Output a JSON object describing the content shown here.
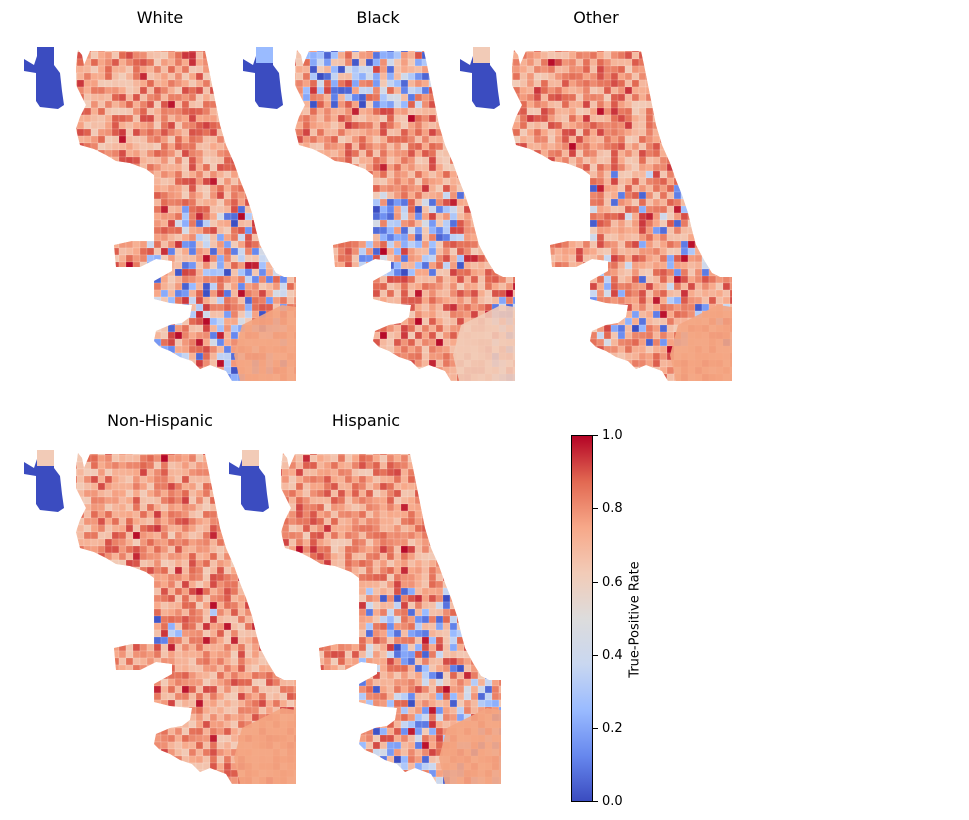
{
  "panels": [
    {
      "title": "White",
      "island_color": "#3b4cc0"
    },
    {
      "title": "Black",
      "island_color": "#3b4cc0"
    },
    {
      "title": "Other",
      "island_color": "#3b4cc0"
    },
    {
      "title": "Non-Hispanic",
      "island_color": "#3b4cc0"
    },
    {
      "title": "Hispanic",
      "island_color": "#3b4cc0"
    }
  ],
  "colorbar": {
    "label": "True-Positive Rate",
    "ticks": [
      "0.0",
      "0.2",
      "0.4",
      "0.6",
      "0.8",
      "1.0"
    ],
    "range": [
      0.0,
      1.0
    ],
    "colormap": "coolwarm"
  }
}
